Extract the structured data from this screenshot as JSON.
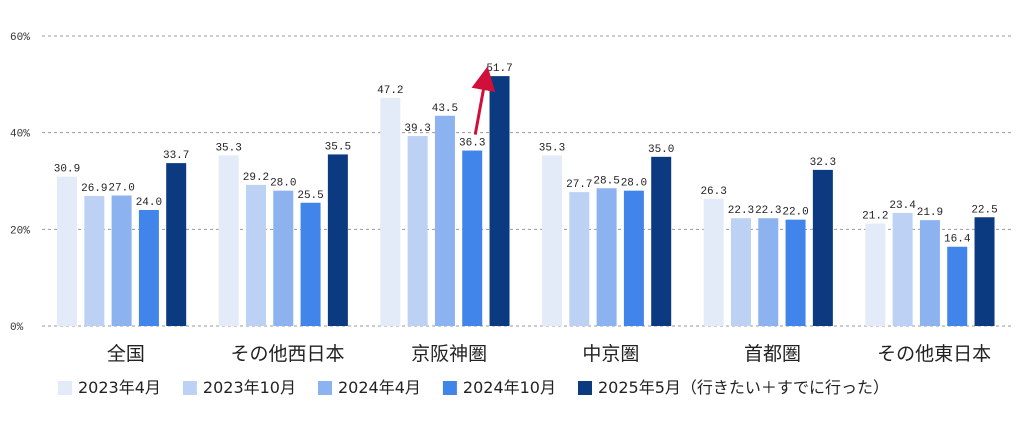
{
  "chart_data": {
    "type": "bar",
    "categories": [
      "全国",
      "その他西日本",
      "京阪神圏",
      "中京圏",
      "首都圏",
      "その他東日本"
    ],
    "series": [
      {
        "name": "2023年4月",
        "color": "#e3eaf8",
        "values": [
          30.9,
          35.3,
          47.2,
          35.3,
          26.3,
          21.2
        ],
        "labels": [
          "30.9",
          "35.3",
          "47.2",
          "35.3",
          "26.3",
          "21.2"
        ]
      },
      {
        "name": "2023年10月",
        "color": "#bdd1f4",
        "values": [
          26.9,
          29.2,
          39.3,
          27.7,
          22.3,
          23.4
        ],
        "labels": [
          "26.9",
          "29.2",
          "39.3",
          "27.7",
          "22.3",
          "23.4"
        ]
      },
      {
        "name": "2024年4月",
        "color": "#8cb2ef",
        "values": [
          27.0,
          28.0,
          43.5,
          28.5,
          22.3,
          21.9
        ],
        "labels": [
          "27.0",
          "28.0",
          "43.5",
          "28.5",
          "22.3",
          "21.9"
        ]
      },
      {
        "name": "2024年10月",
        "color": "#4285ea",
        "values": [
          24.0,
          25.5,
          36.3,
          28.0,
          22.0,
          16.4
        ],
        "labels": [
          "24.0",
          "25.5",
          "36.3",
          "28.0",
          "22.0",
          "16.4"
        ]
      },
      {
        "name": "2025年5月（行きたい＋すでに行った）",
        "color": "#0c3a80",
        "values": [
          33.7,
          35.5,
          51.7,
          35.0,
          32.3,
          22.5
        ],
        "labels": [
          "33.7",
          "35.5",
          "51.7",
          "35.0",
          "32.3",
          "22.5"
        ]
      }
    ],
    "yticks": [
      {
        "value": 0,
        "label": "0%"
      },
      {
        "value": 20,
        "label": "20%"
      },
      {
        "value": 40,
        "label": "40%"
      },
      {
        "value": 60,
        "label": "60%"
      }
    ],
    "ylim": [
      0,
      60
    ],
    "grid": true,
    "legend_position": "bottom",
    "annotation": {
      "type": "arrow",
      "category": "京阪神圏",
      "from_series": "2024年10月",
      "to_series": "2025年5月（行きたい＋すでに行った）",
      "color": "#d0103a"
    }
  }
}
